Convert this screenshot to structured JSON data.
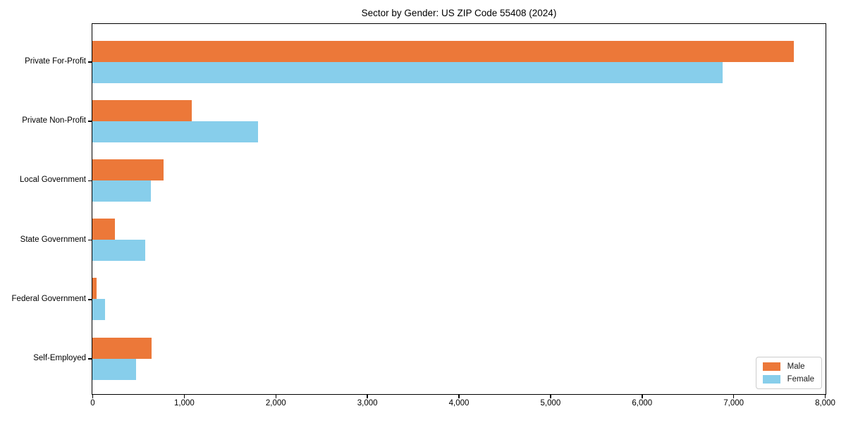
{
  "title": "Sector by Gender: US ZIP Code 55408 (2024)",
  "chart_data": {
    "type": "bar",
    "orientation": "horizontal",
    "title": "Sector by Gender: US ZIP Code 55408 (2024)",
    "xlabel": "",
    "ylabel": "",
    "categories": [
      "Private For-Profit",
      "Private Non-Profit",
      "Local Government",
      "State Government",
      "Federal Government",
      "Self-Employed"
    ],
    "series": [
      {
        "name": "Male",
        "color": "#ec7839",
        "values": [
          7660,
          1085,
          775,
          245,
          45,
          650
        ]
      },
      {
        "name": "Female",
        "color": "#87ceeb",
        "values": [
          6880,
          1810,
          640,
          580,
          135,
          475
        ]
      }
    ],
    "xlim": [
      0,
      8000
    ],
    "x_ticks": [
      0,
      1000,
      2000,
      3000,
      4000,
      5000,
      6000,
      7000,
      8000
    ],
    "x_tick_labels": [
      "0",
      "1,000",
      "2,000",
      "3,000",
      "4,000",
      "5,000",
      "6,000",
      "7,000",
      "8,000"
    ],
    "grid": false,
    "legend": {
      "position": "lower right",
      "entries": [
        "Male",
        "Female"
      ]
    }
  },
  "colors": {
    "male": "#ec7839",
    "female": "#87ceeb",
    "axis": "#000000",
    "background": "#ffffff",
    "legend_border": "#cccccc"
  }
}
